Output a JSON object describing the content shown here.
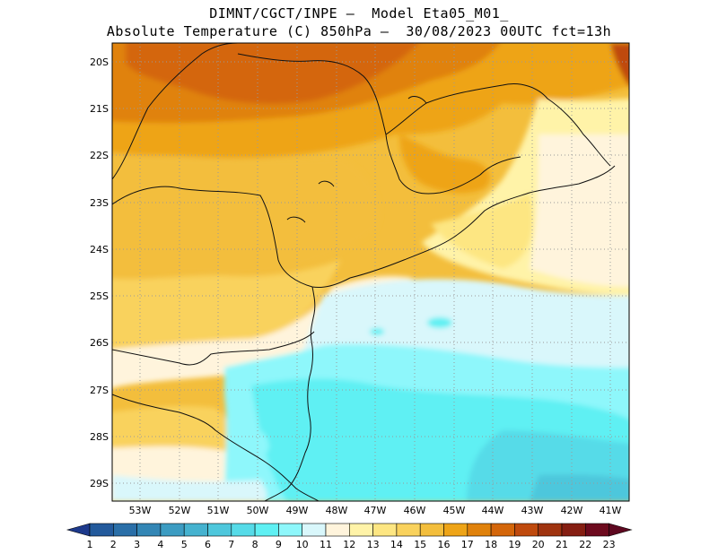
{
  "header": {
    "title_line1": "DIMNT/CGCT/INPE –  Model Eta05_M01_",
    "title_line2": "Absolute Temperature (C) 850hPa –  30/08/2023 00UTC fct=13h"
  },
  "map": {
    "lat_labels": [
      "20S",
      "21S",
      "22S",
      "23S",
      "24S",
      "25S",
      "26S",
      "27S",
      "28S",
      "29S"
    ],
    "lon_labels": [
      "53W",
      "52W",
      "51W",
      "50W",
      "49W",
      "48W",
      "47W",
      "46W",
      "45W",
      "44W",
      "43W",
      "42W",
      "41W"
    ]
  },
  "colorbar": {
    "labels": [
      "1",
      "2",
      "3",
      "4",
      "5",
      "6",
      "7",
      "8",
      "9",
      "10",
      "11",
      "12",
      "13",
      "14",
      "15",
      "16",
      "17",
      "18",
      "19",
      "20",
      "21",
      "22",
      "23"
    ],
    "colors": [
      "#1f3f8f",
      "#235a9c",
      "#2a6fa8",
      "#3386b5",
      "#3c9cc2",
      "#45b2cf",
      "#4ec7dc",
      "#56dbe8",
      "#5ff0f3",
      "#8ef7fb",
      "#d9f7fb",
      "#fff4dc",
      "#fff3a8",
      "#fde682",
      "#f9d25d",
      "#f3be3c",
      "#eea417",
      "#e0820c",
      "#d4660a",
      "#bf4a0d",
      "#9f330f",
      "#851e12",
      "#6d0a1e"
    ],
    "over_color": "#5e0820",
    "under_color": "#1d3a8c"
  }
}
